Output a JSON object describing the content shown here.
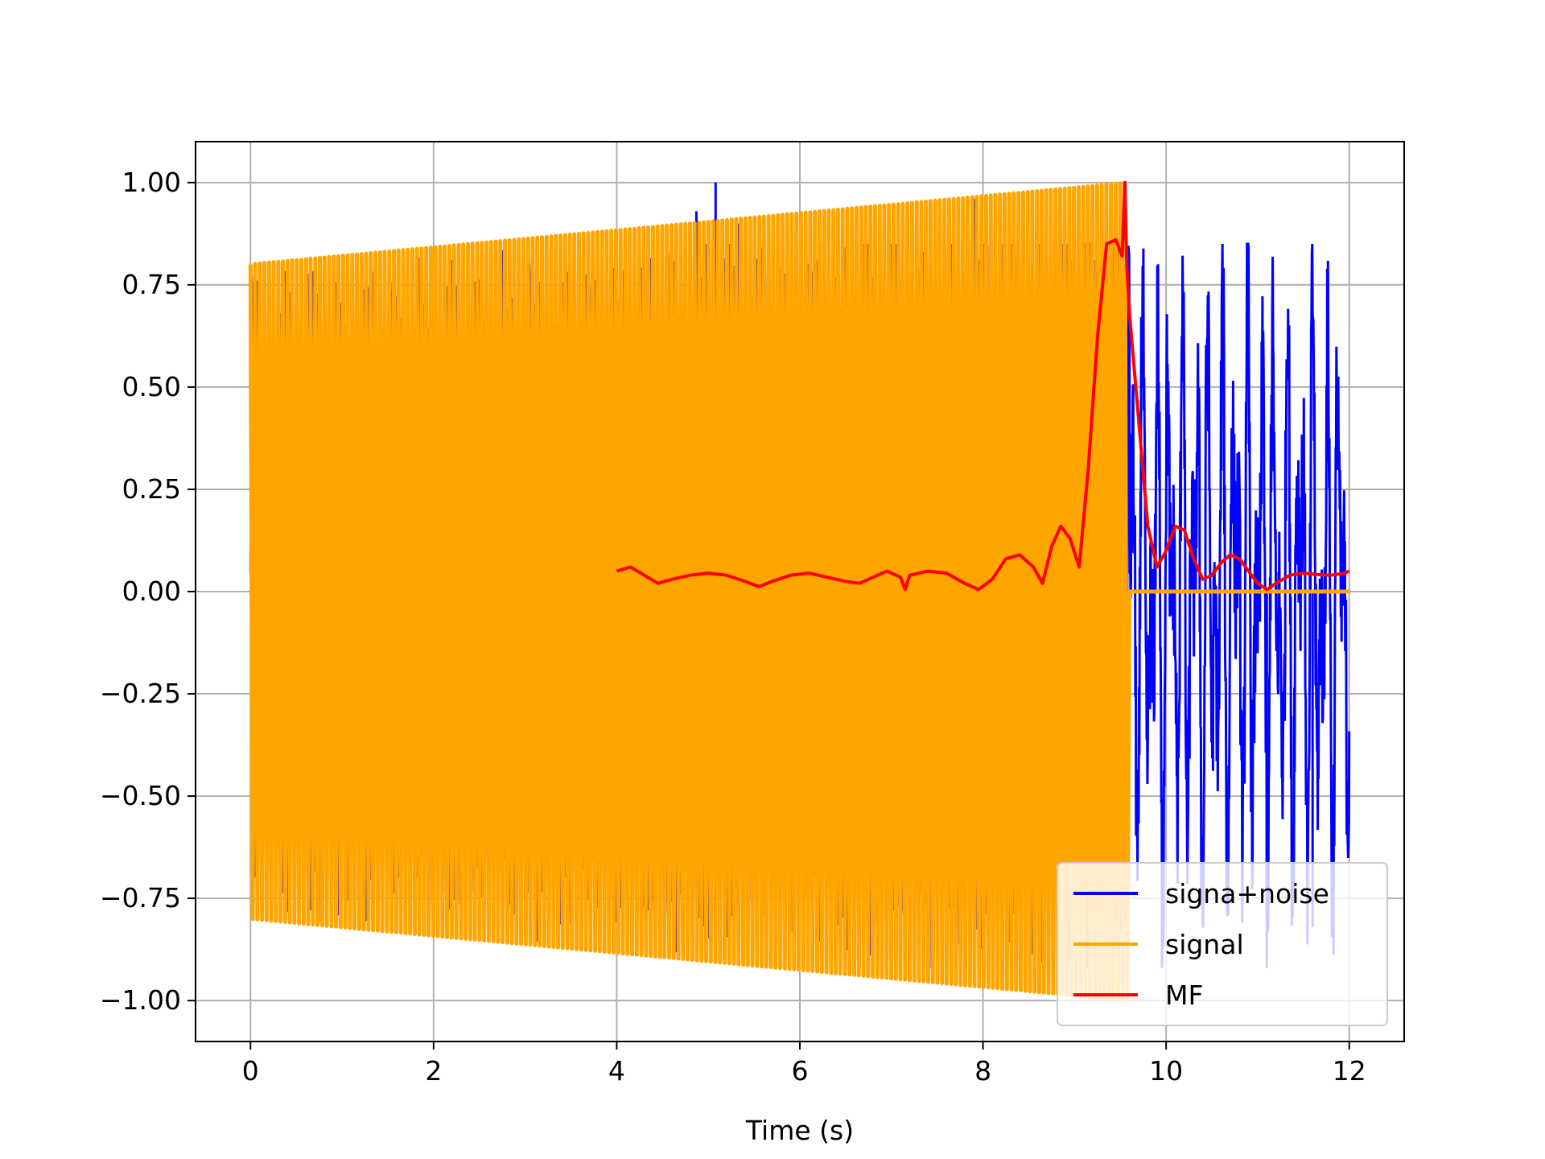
{
  "chart_data": {
    "type": "line",
    "title": "",
    "xlabel": "Time (s)",
    "ylabel": "",
    "xlim": [
      -0.6,
      12.6
    ],
    "ylim": [
      -1.1,
      1.1
    ],
    "xticks": [
      0,
      2,
      4,
      6,
      8,
      10,
      12
    ],
    "xtick_labels": [
      "0",
      "2",
      "4",
      "6",
      "8",
      "10",
      "12"
    ],
    "yticks": [
      1.0,
      0.75,
      0.5,
      0.25,
      0.0,
      -0.25,
      -0.5,
      -0.75,
      -1.0
    ],
    "ytick_labels": [
      "1.00",
      "0.75",
      "0.50",
      "0.25",
      "0.00",
      "−0.25",
      "−0.50",
      "−0.75",
      "−1.00"
    ],
    "grid": true,
    "legend_position": "lower-right",
    "series": [
      {
        "name": "signa+noise",
        "color": "#0000ff",
        "description": "oscillation with noise spanning 0-12 s; during 0-9.6 s it sits behind the signal; after 9.6 s noise alone with amplitude about 0.85",
        "x_range": [
          0,
          12
        ],
        "peaks": [
          [
            4.87,
            0.93
          ],
          [
            5.08,
            1.0
          ],
          [
            5.33,
            0.9
          ],
          [
            7.9,
            0.96
          ],
          [
            11.1,
            -0.92
          ],
          [
            11.6,
            -0.82
          ]
        ]
      },
      {
        "name": "signal",
        "color": "#ffa500",
        "description": "chirp-like oscillation from 0 to 9.6 s, envelope rising linearly from 0.8 to 1.0, then zero until 12 s",
        "x_range": [
          0,
          9.6
        ],
        "envelope_start": 0.8,
        "envelope_end": 1.0,
        "zero_after": 9.6
      },
      {
        "name": "MF",
        "color": "#ff0000",
        "x": [
          4.0,
          4.15,
          4.3,
          4.45,
          4.6,
          4.8,
          5.0,
          5.2,
          5.4,
          5.55,
          5.7,
          5.9,
          6.1,
          6.3,
          6.5,
          6.65,
          6.8,
          6.95,
          7.1,
          7.15,
          7.2,
          7.4,
          7.6,
          7.8,
          7.95,
          8.1,
          8.25,
          8.4,
          8.55,
          8.65,
          8.75,
          8.85,
          8.95,
          9.05,
          9.15,
          9.25,
          9.35,
          9.45,
          9.52,
          9.55,
          9.57,
          9.6,
          9.7,
          9.8,
          9.9,
          10.0,
          10.1,
          10.2,
          10.3,
          10.4,
          10.5,
          10.6,
          10.7,
          10.8,
          10.9,
          11.0,
          11.1,
          11.2,
          11.35,
          11.5,
          11.65,
          11.8,
          11.95,
          12.0
        ],
        "y": [
          0.05,
          0.06,
          0.04,
          0.02,
          0.03,
          0.04,
          0.045,
          0.04,
          0.025,
          0.012,
          0.025,
          0.04,
          0.045,
          0.035,
          0.025,
          0.02,
          0.035,
          0.05,
          0.035,
          0.005,
          0.04,
          0.05,
          0.045,
          0.02,
          0.005,
          0.03,
          0.08,
          0.09,
          0.06,
          0.02,
          0.11,
          0.16,
          0.13,
          0.06,
          0.3,
          0.62,
          0.85,
          0.86,
          0.82,
          1.0,
          0.8,
          0.68,
          0.42,
          0.16,
          0.06,
          0.1,
          0.16,
          0.15,
          0.08,
          0.03,
          0.04,
          0.07,
          0.09,
          0.08,
          0.05,
          0.02,
          0.005,
          0.02,
          0.04,
          0.045,
          0.042,
          0.04,
          0.045,
          0.05
        ]
      }
    ]
  }
}
